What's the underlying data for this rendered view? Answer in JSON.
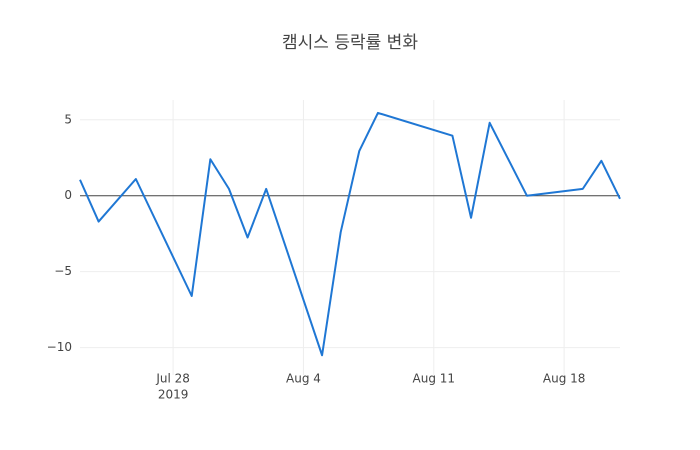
{
  "chart_data": {
    "type": "line",
    "title": "캠시스 등락률 변화",
    "x": [
      "2019-07-23",
      "2019-07-24",
      "2019-07-26",
      "2019-07-29",
      "2019-07-30",
      "2019-07-31",
      "2019-08-01",
      "2019-08-02",
      "2019-08-05",
      "2019-08-06",
      "2019-08-07",
      "2019-08-08",
      "2019-08-12",
      "2019-08-13",
      "2019-08-14",
      "2019-08-16",
      "2019-08-19",
      "2019-08-20",
      "2019-08-21"
    ],
    "series": [
      {
        "name": "등락률",
        "color": "#1f77d4",
        "values": [
          1.05,
          -1.7,
          1.1,
          -6.6,
          2.4,
          0.45,
          -2.75,
          0.45,
          -10.5,
          -2.4,
          2.95,
          5.45,
          3.95,
          -1.45,
          4.8,
          0,
          0.45,
          2.3,
          -0.2
        ]
      }
    ],
    "xlim": [
      "2019-07-23",
      "2019-08-21"
    ],
    "xticks": [
      {
        "value": "2019-07-28",
        "label": "Jul 28"
      },
      {
        "value": "2019-08-04",
        "label": "Aug 4"
      },
      {
        "value": "2019-08-11",
        "label": "Aug 11"
      },
      {
        "value": "2019-08-18",
        "label": "Aug 18"
      }
    ],
    "x_year_label": "2019",
    "ylim": [
      -11.8,
      6.3
    ],
    "yticks": [
      5,
      0,
      {
        "value": -5,
        "label": "−5"
      },
      {
        "value": -10,
        "label": "−10"
      }
    ],
    "grid": true
  }
}
